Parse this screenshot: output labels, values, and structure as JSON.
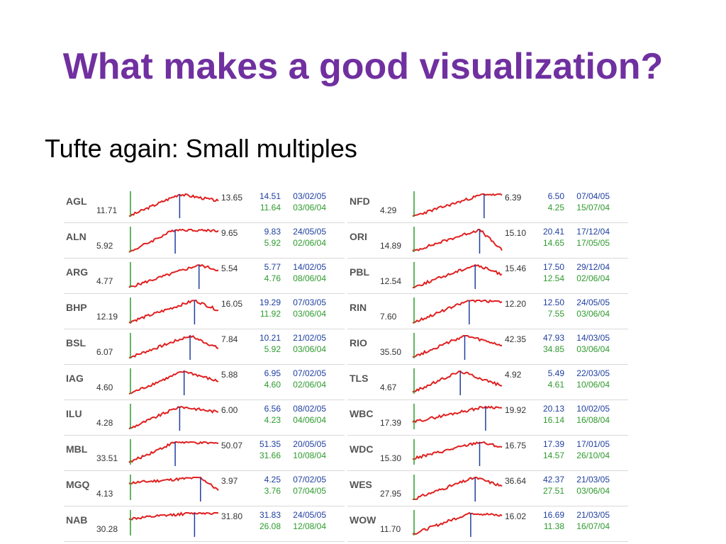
{
  "slide": {
    "title": "What makes a good visualization?",
    "subtitle": "Tufte again: Small multiples"
  },
  "colors": {
    "title": "#7030a0",
    "line": "#e02020",
    "high": "#1f3f9f",
    "low": "#2e9a2e"
  },
  "stocks": [
    [
      {
        "ticker": "AGL",
        "start": "11.71",
        "end": "13.65",
        "high": "14.51",
        "high_date": "03/02/05",
        "low": "11.64",
        "low_date": "03/06/04"
      },
      {
        "ticker": "ALN",
        "start": "5.92",
        "end": "9.65",
        "high": "9.83",
        "high_date": "24/05/05",
        "low": "5.92",
        "low_date": "02/06/04"
      },
      {
        "ticker": "ARG",
        "start": "4.77",
        "end": "5.54",
        "high": "5.77",
        "high_date": "14/02/05",
        "low": "4.76",
        "low_date": "08/06/04"
      },
      {
        "ticker": "BHP",
        "start": "12.19",
        "end": "16.05",
        "high": "19.29",
        "high_date": "07/03/05",
        "low": "11.92",
        "low_date": "03/06/04"
      },
      {
        "ticker": "BSL",
        "start": "6.07",
        "end": "7.84",
        "high": "10.21",
        "high_date": "21/02/05",
        "low": "5.92",
        "low_date": "03/06/04"
      },
      {
        "ticker": "IAG",
        "start": "4.60",
        "end": "5.88",
        "high": "6.95",
        "high_date": "07/02/05",
        "low": "4.60",
        "low_date": "02/06/04"
      },
      {
        "ticker": "ILU",
        "start": "4.28",
        "end": "6.00",
        "high": "6.56",
        "high_date": "08/02/05",
        "low": "4.23",
        "low_date": "04/06/04"
      },
      {
        "ticker": "MBL",
        "start": "33.51",
        "end": "50.07",
        "high": "51.35",
        "high_date": "20/05/05",
        "low": "31.66",
        "low_date": "10/08/04"
      },
      {
        "ticker": "MGQ",
        "start": "4.13",
        "end": "3.97",
        "high": "4.25",
        "high_date": "07/02/05",
        "low": "3.76",
        "low_date": "07/04/05"
      },
      {
        "ticker": "NAB",
        "start": "30.28",
        "end": "31.80",
        "high": "31.83",
        "high_date": "24/05/05",
        "low": "26.08",
        "low_date": "12/08/04"
      }
    ],
    [
      {
        "ticker": "NFD",
        "start": "4.29",
        "end": "6.39",
        "high": "6.50",
        "high_date": "07/04/05",
        "low": "4.25",
        "low_date": "15/07/04"
      },
      {
        "ticker": "ORI",
        "start": "14.89",
        "end": "15.10",
        "high": "20.41",
        "high_date": "17/12/04",
        "low": "14.65",
        "low_date": "17/05/05"
      },
      {
        "ticker": "PBL",
        "start": "12.54",
        "end": "15.46",
        "high": "17.50",
        "high_date": "29/12/04",
        "low": "12.54",
        "low_date": "02/06/04"
      },
      {
        "ticker": "RIN",
        "start": "7.60",
        "end": "12.20",
        "high": "12.50",
        "high_date": "24/05/05",
        "low": "7.55",
        "low_date": "03/06/04"
      },
      {
        "ticker": "RIO",
        "start": "35.50",
        "end": "42.35",
        "high": "47.93",
        "high_date": "14/03/05",
        "low": "34.85",
        "low_date": "03/06/04"
      },
      {
        "ticker": "TLS",
        "start": "4.67",
        "end": "4.92",
        "high": "5.49",
        "high_date": "22/03/05",
        "low": "4.61",
        "low_date": "10/06/04"
      },
      {
        "ticker": "WBC",
        "start": "17.39",
        "end": "19.92",
        "high": "20.13",
        "high_date": "10/02/05",
        "low": "16.14",
        "low_date": "16/08/04"
      },
      {
        "ticker": "WDC",
        "start": "15.30",
        "end": "16.75",
        "high": "17.39",
        "high_date": "17/01/05",
        "low": "14.57",
        "low_date": "26/10/04"
      },
      {
        "ticker": "WES",
        "start": "27.95",
        "end": "36.64",
        "high": "42.37",
        "high_date": "21/03/05",
        "low": "27.51",
        "low_date": "03/06/04"
      },
      {
        "ticker": "WOW",
        "start": "11.70",
        "end": "16.02",
        "high": "16.69",
        "high_date": "21/03/05",
        "low": "11.38",
        "low_date": "16/07/04"
      }
    ]
  ]
}
